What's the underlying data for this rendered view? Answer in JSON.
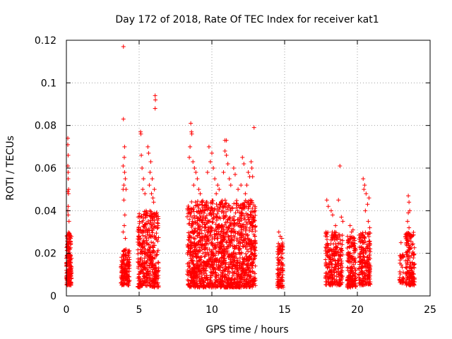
{
  "chart_data": {
    "type": "scatter",
    "title": "Day 172 of 2018, Rate Of TEC Index for receiver kat1",
    "xlabel": "GPS time / hours",
    "ylabel": "ROTI / TECUs",
    "xlim": [
      0,
      25
    ],
    "ylim": [
      0,
      0.12
    ],
    "grid": true,
    "marker": "plus",
    "series_color": "#ff0000",
    "x_ticks": [
      {
        "value": 0,
        "label": "0"
      },
      {
        "value": 5,
        "label": "5"
      },
      {
        "value": 10,
        "label": "10"
      },
      {
        "value": 15,
        "label": "15"
      },
      {
        "value": 20,
        "label": "20"
      },
      {
        "value": 25,
        "label": "25"
      }
    ],
    "y_ticks": [
      {
        "value": 0,
        "label": "0"
      },
      {
        "value": 0.02,
        "label": "0.02"
      },
      {
        "value": 0.04,
        "label": "0.04"
      },
      {
        "value": 0.06,
        "label": "0.06"
      },
      {
        "value": 0.08,
        "label": "0.08"
      },
      {
        "value": 0.1,
        "label": "0.1"
      },
      {
        "value": 0.12,
        "label": "0.12"
      }
    ],
    "clusters": [
      {
        "x_range": [
          0.0,
          0.35
        ],
        "y_range": [
          0.005,
          0.03
        ],
        "count": 180
      },
      {
        "x_range": [
          3.75,
          4.35
        ],
        "y_range": [
          0.005,
          0.022
        ],
        "count": 160
      },
      {
        "x_range": [
          4.9,
          6.35
        ],
        "y_range": [
          0.004,
          0.04
        ],
        "count": 420
      },
      {
        "x_range": [
          8.3,
          13.0
        ],
        "y_range": [
          0.004,
          0.045
        ],
        "count": 1500
      },
      {
        "x_range": [
          14.5,
          14.9
        ],
        "y_range": [
          0.004,
          0.025
        ],
        "count": 100
      },
      {
        "x_range": [
          17.8,
          19.0
        ],
        "y_range": [
          0.005,
          0.03
        ],
        "count": 260
      },
      {
        "x_range": [
          19.3,
          19.9
        ],
        "y_range": [
          0.004,
          0.028
        ],
        "count": 170
      },
      {
        "x_range": [
          20.1,
          20.9
        ],
        "y_range": [
          0.005,
          0.03
        ],
        "count": 200
      },
      {
        "x_range": [
          22.9,
          23.2
        ],
        "y_range": [
          0.006,
          0.02
        ],
        "count": 35
      },
      {
        "x_range": [
          23.3,
          23.95
        ],
        "y_range": [
          0.005,
          0.03
        ],
        "count": 160
      }
    ],
    "points": [
      [
        0.1,
        0.074
      ],
      [
        0.1,
        0.071
      ],
      [
        0.12,
        0.066
      ],
      [
        0.1,
        0.061
      ],
      [
        0.12,
        0.058
      ],
      [
        0.12,
        0.055
      ],
      [
        0.15,
        0.05
      ],
      [
        0.1,
        0.049
      ],
      [
        0.14,
        0.048
      ],
      [
        0.12,
        0.042
      ],
      [
        0.1,
        0.04
      ],
      [
        0.12,
        0.038
      ],
      [
        0.18,
        0.035
      ],
      [
        3.92,
        0.117
      ],
      [
        3.92,
        0.083
      ],
      [
        4.0,
        0.07
      ],
      [
        3.98,
        0.065
      ],
      [
        3.9,
        0.061
      ],
      [
        4.0,
        0.058
      ],
      [
        4.05,
        0.055
      ],
      [
        3.95,
        0.052
      ],
      [
        3.9,
        0.05
      ],
      [
        4.1,
        0.05
      ],
      [
        3.95,
        0.045
      ],
      [
        4.02,
        0.038
      ],
      [
        3.98,
        0.033
      ],
      [
        3.9,
        0.03
      ],
      [
        4.05,
        0.027
      ],
      [
        5.1,
        0.077
      ],
      [
        5.12,
        0.076
      ],
      [
        5.15,
        0.066
      ],
      [
        5.2,
        0.06
      ],
      [
        5.3,
        0.055
      ],
      [
        5.25,
        0.05
      ],
      [
        5.4,
        0.048
      ],
      [
        5.6,
        0.07
      ],
      [
        5.65,
        0.067
      ],
      [
        5.8,
        0.063
      ],
      [
        5.75,
        0.058
      ],
      [
        5.9,
        0.055
      ],
      [
        5.7,
        0.052
      ],
      [
        5.85,
        0.048
      ],
      [
        5.95,
        0.046
      ],
      [
        6.1,
        0.094
      ],
      [
        6.12,
        0.092
      ],
      [
        6.1,
        0.088
      ],
      [
        6.05,
        0.05
      ],
      [
        6.0,
        0.044
      ],
      [
        8.55,
        0.081
      ],
      [
        8.6,
        0.077
      ],
      [
        8.62,
        0.076
      ],
      [
        8.5,
        0.07
      ],
      [
        8.45,
        0.065
      ],
      [
        8.7,
        0.063
      ],
      [
        8.8,
        0.06
      ],
      [
        8.9,
        0.058
      ],
      [
        9.0,
        0.055
      ],
      [
        8.75,
        0.052
      ],
      [
        9.1,
        0.05
      ],
      [
        9.2,
        0.048
      ],
      [
        9.8,
        0.07
      ],
      [
        10.0,
        0.067
      ],
      [
        9.9,
        0.063
      ],
      [
        10.1,
        0.06
      ],
      [
        9.7,
        0.058
      ],
      [
        10.2,
        0.055
      ],
      [
        10.4,
        0.052
      ],
      [
        10.5,
        0.05
      ],
      [
        10.3,
        0.048
      ],
      [
        10.9,
        0.073
      ],
      [
        11.0,
        0.073
      ],
      [
        10.9,
        0.068
      ],
      [
        11.0,
        0.066
      ],
      [
        11.1,
        0.062
      ],
      [
        10.8,
        0.058
      ],
      [
        11.2,
        0.055
      ],
      [
        11.5,
        0.06
      ],
      [
        11.6,
        0.057
      ],
      [
        11.3,
        0.052
      ],
      [
        11.8,
        0.05
      ],
      [
        12.0,
        0.052
      ],
      [
        12.1,
        0.065
      ],
      [
        12.2,
        0.062
      ],
      [
        12.5,
        0.058
      ],
      [
        12.6,
        0.056
      ],
      [
        12.7,
        0.063
      ],
      [
        12.75,
        0.06
      ],
      [
        12.8,
        0.056
      ],
      [
        12.9,
        0.079
      ],
      [
        12.4,
        0.052
      ],
      [
        12.3,
        0.048
      ],
      [
        14.6,
        0.03
      ],
      [
        14.7,
        0.028
      ],
      [
        14.8,
        0.027
      ],
      [
        17.9,
        0.045
      ],
      [
        18.0,
        0.042
      ],
      [
        18.2,
        0.04
      ],
      [
        18.3,
        0.038
      ],
      [
        18.7,
        0.045
      ],
      [
        18.8,
        0.061
      ],
      [
        18.5,
        0.033
      ],
      [
        18.9,
        0.037
      ],
      [
        19.0,
        0.035
      ],
      [
        19.5,
        0.033
      ],
      [
        19.6,
        0.03
      ],
      [
        19.7,
        0.031
      ],
      [
        20.4,
        0.055
      ],
      [
        20.5,
        0.052
      ],
      [
        20.45,
        0.05
      ],
      [
        20.6,
        0.048
      ],
      [
        20.8,
        0.046
      ],
      [
        20.7,
        0.043
      ],
      [
        20.55,
        0.04
      ],
      [
        20.75,
        0.035
      ],
      [
        20.85,
        0.032
      ],
      [
        23.0,
        0.025
      ],
      [
        23.5,
        0.047
      ],
      [
        23.55,
        0.044
      ],
      [
        23.6,
        0.04
      ],
      [
        23.5,
        0.039
      ],
      [
        23.45,
        0.035
      ],
      [
        23.55,
        0.032
      ],
      [
        23.7,
        0.028
      ]
    ]
  }
}
